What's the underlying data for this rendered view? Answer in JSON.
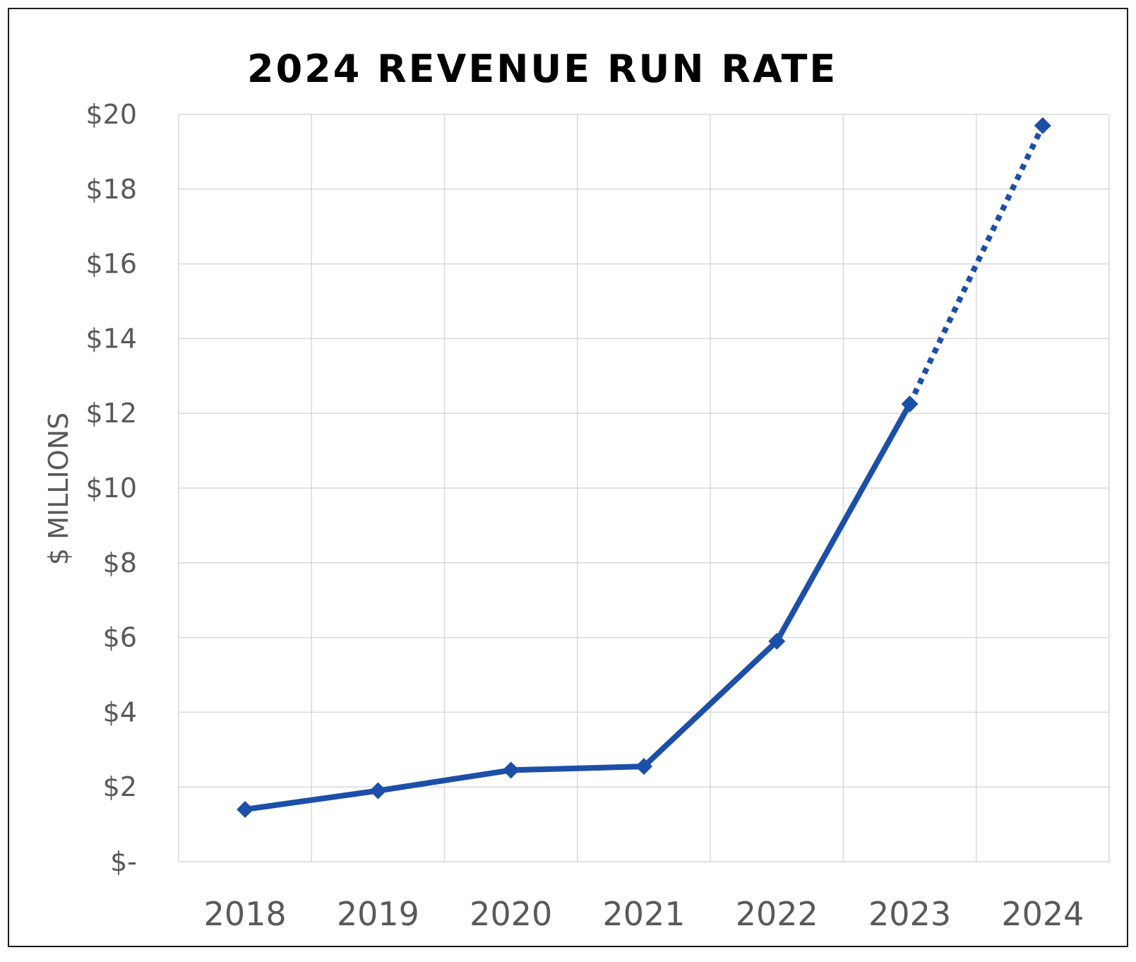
{
  "chart_data": {
    "type": "line",
    "title": "2024 REVENUE RUN RATE",
    "xlabel": "",
    "ylabel": "$ MILLIONS",
    "categories": [
      "2018",
      "2019",
      "2020",
      "2021",
      "2022",
      "2023",
      "2024"
    ],
    "y_tick_values": [
      0,
      2,
      4,
      6,
      8,
      10,
      12,
      14,
      16,
      18,
      20
    ],
    "y_tick_labels": [
      "$-",
      "$2",
      "$4",
      "$6",
      "$8",
      "$10",
      "$12",
      "$14",
      "$16",
      "$18",
      "$20"
    ],
    "ylim": [
      0,
      20
    ],
    "grid": true,
    "legend": "none",
    "series": [
      {
        "values": [
          1.4,
          1.9,
          2.45,
          2.55,
          5.9,
          12.25,
          19.7
        ],
        "projected_from_index": 5,
        "marker": "diamond",
        "color": "#1c4fa8"
      }
    ]
  }
}
